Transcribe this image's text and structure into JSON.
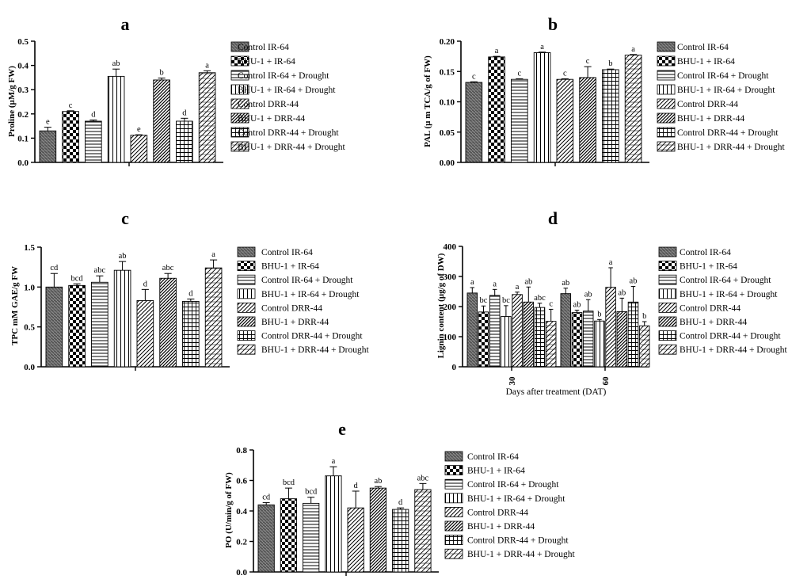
{
  "series_names": [
    "Control IR-64",
    "BHU-1 + IR-64",
    "Control IR-64 + Drought",
    "BHU-1 + IR-64 + Drought",
    "Control DRR-44",
    "BHU-1 + DRR-44",
    "Control DRR-44 + Drought",
    "BHU-1 + DRR-44 + Drought"
  ],
  "chart_data": [
    {
      "type": "bar",
      "panel": "a",
      "ylabel": "Proline (µM/g FW)",
      "ylim": [
        0,
        0.5
      ],
      "yticks": [
        "0.0",
        "0.1",
        "0.2",
        "0.3",
        "0.4",
        "0.5"
      ],
      "values": [
        0.13,
        0.21,
        0.17,
        0.355,
        0.112,
        0.34,
        0.17,
        0.37
      ],
      "errors": [
        0.015,
        0.003,
        0.005,
        0.03,
        0.002,
        0.008,
        0.012,
        0.008
      ],
      "letters": [
        "e",
        "c",
        "d",
        "ab",
        "e",
        "b",
        "d",
        "a"
      ]
    },
    {
      "type": "bar",
      "panel": "b",
      "ylabel": "PAL (µ m TCA/g of FW)",
      "ylim": [
        0,
        0.2
      ],
      "yticks": [
        "0.00",
        "0.05",
        "0.10",
        "0.15",
        "0.20"
      ],
      "values": [
        0.132,
        0.174,
        0.137,
        0.181,
        0.137,
        0.14,
        0.153,
        0.177
      ],
      "errors": [
        0.001,
        0.001,
        0.001,
        0.001,
        0.001,
        0.018,
        0.001,
        0.001
      ],
      "letters": [
        "c",
        "a",
        "c",
        "a",
        "c",
        "c",
        "b",
        "a"
      ]
    },
    {
      "type": "bar",
      "panel": "c",
      "ylabel": "TPC mM GAE/g FW",
      "ylim": [
        0,
        1.5
      ],
      "yticks": [
        "0.0",
        "0.5",
        "1.0",
        "1.5"
      ],
      "values": [
        1.0,
        1.02,
        1.06,
        1.21,
        0.83,
        1.11,
        0.82,
        1.24
      ],
      "errors": [
        0.17,
        0.02,
        0.08,
        0.11,
        0.14,
        0.06,
        0.03,
        0.1
      ],
      "letters": [
        "cd",
        "bcd",
        "abc",
        "ab",
        "d",
        "abc",
        "d",
        "a"
      ]
    },
    {
      "type": "bar",
      "panel": "d",
      "ylabel": "Lignin content (µg/g of DW)",
      "xlabel": "Days after treatment (DAT)",
      "categories": [
        "30",
        "60"
      ],
      "ylim": [
        0,
        400
      ],
      "yticks": [
        "0",
        "100",
        "200",
        "300",
        "400"
      ],
      "groups": [
        {
          "category": "30",
          "values": [
            245,
            182,
            237,
            167,
            240,
            215,
            197,
            151
          ],
          "errors": [
            18,
            20,
            20,
            36,
            8,
            50,
            14,
            40
          ],
          "letters": [
            "a",
            "bc",
            "a",
            "bc",
            "a",
            "ab",
            "abc",
            "c"
          ]
        },
        {
          "category": "60",
          "values": [
            243,
            180,
            185,
            152,
            264,
            183,
            215,
            136
          ],
          "errors": [
            18,
            8,
            38,
            5,
            65,
            45,
            52,
            14
          ],
          "letters": [
            "ab",
            "ab",
            "ab",
            "b",
            "a",
            "ab",
            "ab",
            "b"
          ]
        }
      ]
    },
    {
      "type": "bar",
      "panel": "e",
      "ylabel": "PO (U/min/g of FW)",
      "ylim": [
        0,
        0.8
      ],
      "yticks": [
        "0.0",
        "0.2",
        "0.4",
        "0.6",
        "0.8"
      ],
      "values": [
        0.44,
        0.48,
        0.45,
        0.63,
        0.42,
        0.55,
        0.41,
        0.54
      ],
      "errors": [
        0.015,
        0.07,
        0.04,
        0.06,
        0.11,
        0.01,
        0.01,
        0.04
      ],
      "letters": [
        "cd",
        "bcd",
        "bcd",
        "a",
        "d",
        "ab",
        "d",
        "abc"
      ]
    }
  ]
}
